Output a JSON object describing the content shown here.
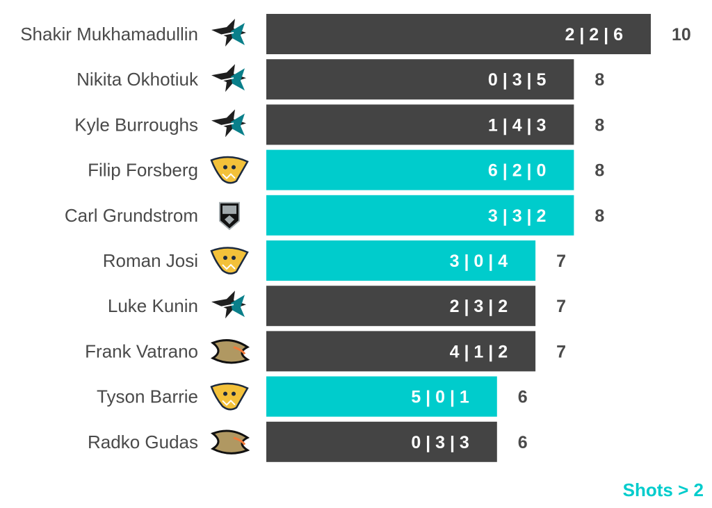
{
  "colors": {
    "sharks": "#444444",
    "predators": "#00cccc",
    "kings": "#00cccc",
    "ducks": "#444444",
    "name_text": "#4a4a4a",
    "note": "#00cccc"
  },
  "note": "Shots > 2",
  "chart_data": {
    "type": "bar",
    "orientation": "horizontal",
    "xlim": [
      0,
      10
    ],
    "categories": [
      "Shakir Mukhamadullin",
      "Nikita Okhotiuk",
      "Kyle Burroughs",
      "Filip Forsberg",
      "Carl Grundstrom",
      "Roman Josi",
      "Luke Kunin",
      "Frank Vatrano",
      "Tyson Barrie",
      "Radko Gudas"
    ],
    "values": [
      10,
      8,
      8,
      8,
      8,
      7,
      7,
      7,
      6,
      6
    ],
    "segment_labels": [
      "2 | 2 | 6",
      "0 | 3 | 5",
      "1 | 4 | 3",
      "6 | 2 | 0",
      "3 | 3 | 2",
      "3 | 0 | 4",
      "2 | 3 | 2",
      "4 | 1 | 2",
      "5 | 0 | 1",
      "0 | 3 | 3"
    ],
    "teams": [
      "sharks-icon",
      "sharks-icon",
      "sharks-icon",
      "predators-icon",
      "kings-icon",
      "predators-icon",
      "sharks-icon",
      "ducks-icon",
      "predators-icon",
      "ducks-icon"
    ]
  }
}
